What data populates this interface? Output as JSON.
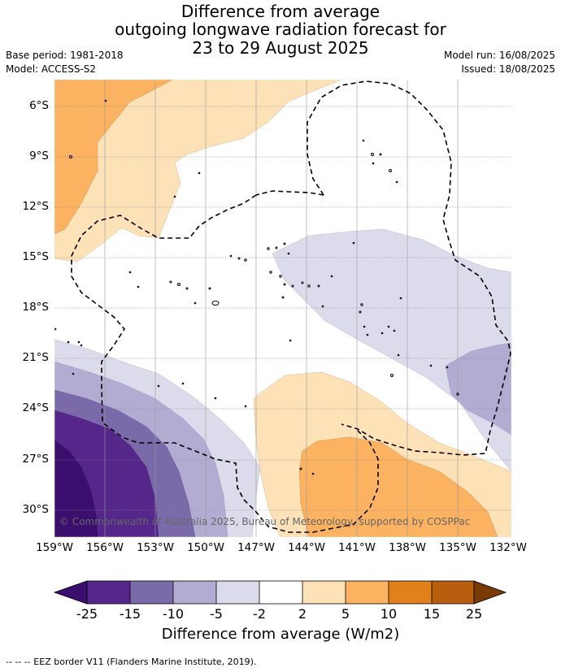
{
  "title": {
    "line1": "Difference from average",
    "line2": "outgoing longwave radiation forecast for",
    "line3": "23 to 29 August 2025"
  },
  "meta": {
    "base_period": "Base period: 1981-2018",
    "model": "Model: ACCESS-S2",
    "model_run": "Model run: 16/08/2025",
    "issued": "Issued: 18/08/2025"
  },
  "map": {
    "lat_labels": [
      "6°S",
      "9°S",
      "12°S",
      "15°S",
      "18°S",
      "21°S",
      "24°S",
      "27°S",
      "30°S"
    ],
    "lon_labels": [
      "159°W",
      "156°W",
      "153°W",
      "150°W",
      "147°W",
      "144°W",
      "141°W",
      "138°W",
      "135°W",
      "132°W"
    ],
    "watermark": "© Commonwealth of Australia 2025, Bureau of Meteorology, supported by COSPPac",
    "boundary_style": "dashed-black"
  },
  "colorbar": {
    "ticks": [
      "-25",
      "-15",
      "-10",
      "-5",
      "-2",
      "2",
      "5",
      "10",
      "15",
      "25"
    ],
    "colors": [
      "#3b0f6e",
      "#55278a",
      "#7b6aa9",
      "#b3acd2",
      "#dcdbeb",
      "#ffffff",
      "#fde2b8",
      "#fbb261",
      "#e0811c",
      "#b85e0f",
      "#7a3a06"
    ],
    "title": "Difference from average (W/m2)"
  },
  "legend": {
    "eez": "-- -- -- EEZ border V11 (Flanders Marine Institute, 2019)."
  }
}
